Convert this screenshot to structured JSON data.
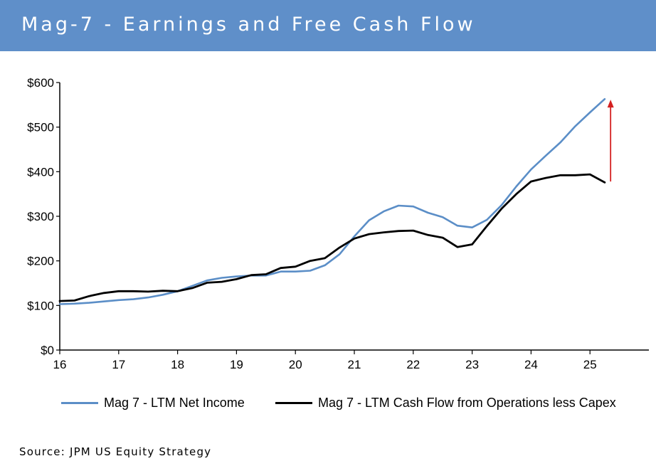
{
  "header": {
    "title": "Mag-7 - Earnings and Free Cash Flow"
  },
  "footer": {
    "source": "Source: JPM US Equity Strategy"
  },
  "colors": {
    "title_bar": "#5f8fc9",
    "net_income": "#5b8ec7",
    "cash_flow": "#000000",
    "arrow": "#d42020"
  },
  "chart_data": {
    "type": "line",
    "title": "Mag-7 - Earnings and Free Cash Flow",
    "xlabel": "",
    "ylabel": "",
    "xlim": [
      16,
      26
    ],
    "ylim": [
      0,
      600
    ],
    "x_ticks": [
      16,
      17,
      18,
      19,
      20,
      21,
      22,
      23,
      24,
      25
    ],
    "x_tick_labels": [
      "16",
      "17",
      "18",
      "19",
      "20",
      "21",
      "22",
      "23",
      "24",
      "25"
    ],
    "y_ticks": [
      0,
      100,
      200,
      300,
      400,
      500,
      600
    ],
    "y_tick_labels": [
      "$0",
      "$100",
      "$200",
      "$300",
      "$400",
      "$500",
      "$600"
    ],
    "grid": false,
    "legend_position": "bottom",
    "series": [
      {
        "name": "Mag 7 - LTM Net Income",
        "color": "#5b8ec7",
        "x": [
          16.0,
          16.25,
          16.5,
          16.75,
          17.0,
          17.25,
          17.5,
          17.75,
          18.0,
          18.25,
          18.5,
          18.75,
          19.0,
          19.25,
          19.5,
          19.75,
          20.0,
          20.25,
          20.5,
          20.75,
          21.0,
          21.25,
          21.5,
          21.75,
          22.0,
          22.25,
          22.5,
          22.75,
          23.0,
          23.25,
          23.5,
          23.75,
          24.0,
          24.25,
          24.5,
          24.75,
          25.0,
          25.25
        ],
        "values": [
          103,
          104,
          106,
          109,
          112,
          114,
          118,
          124,
          132,
          144,
          156,
          162,
          165,
          167,
          167,
          176,
          176,
          178,
          190,
          215,
          255,
          291,
          311,
          324,
          322,
          308,
          298,
          279,
          275,
          292,
          325,
          367,
          405,
          436,
          466,
          502,
          533,
          563
        ]
      },
      {
        "name": "Mag 7 - LTM Cash Flow from Operations less Capex",
        "color": "#000000",
        "x": [
          16.0,
          16.25,
          16.5,
          16.75,
          17.0,
          17.25,
          17.5,
          17.75,
          18.0,
          18.25,
          18.5,
          18.75,
          19.0,
          19.25,
          19.5,
          19.75,
          20.0,
          20.25,
          20.5,
          20.75,
          21.0,
          21.25,
          21.5,
          21.75,
          22.0,
          22.25,
          22.5,
          22.75,
          23.0,
          23.25,
          23.5,
          23.75,
          24.0,
          24.25,
          24.5,
          24.75,
          25.0,
          25.25
        ],
        "values": [
          110,
          111,
          121,
          128,
          132,
          132,
          131,
          133,
          132,
          139,
          151,
          153,
          159,
          168,
          170,
          184,
          187,
          200,
          206,
          230,
          250,
          260,
          264,
          267,
          268,
          258,
          252,
          231,
          237,
          278,
          317,
          350,
          378,
          386,
          392,
          392,
          394,
          376
        ]
      }
    ],
    "annotations": [
      {
        "type": "arrow",
        "color": "#d42020",
        "x": 25.35,
        "y_from": 378,
        "y_to": 560
      }
    ]
  }
}
